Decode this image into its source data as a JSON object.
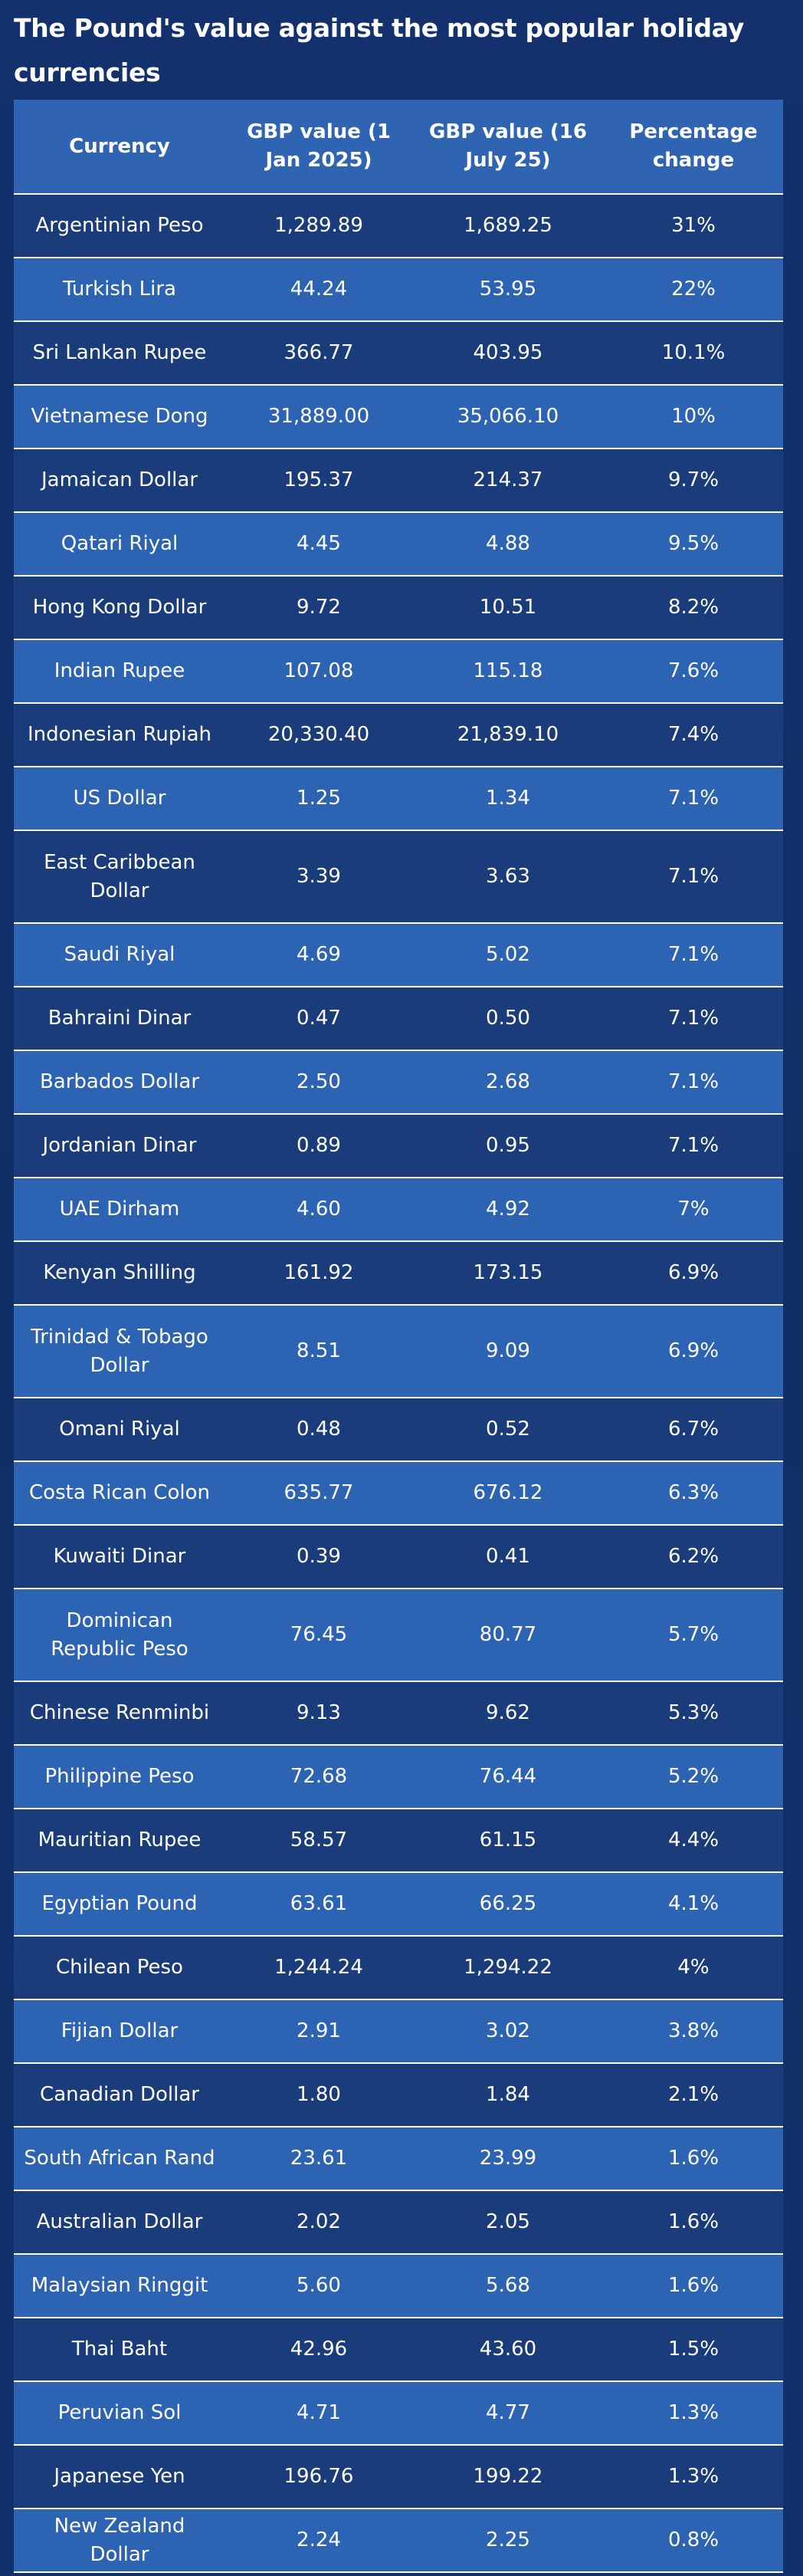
{
  "title": "The Pound's value against the most popular holiday currencies",
  "table": {
    "headers": [
      "Currency",
      "GBP value (1 Jan 2025)",
      "GBP value (16 July 25)",
      "Percentage change"
    ],
    "rows": [
      [
        "Argentinian Peso",
        "1,289.89",
        "1,689.25",
        "31%"
      ],
      [
        "Turkish Lira",
        "44.24",
        "53.95",
        "22%"
      ],
      [
        "Sri Lankan Rupee",
        "366.77",
        "403.95",
        "10.1%"
      ],
      [
        "Vietnamese Dong",
        "31,889.00",
        "35,066.10",
        "10%"
      ],
      [
        "Jamaican Dollar",
        "195.37",
        "214.37",
        "9.7%"
      ],
      [
        "Qatari Riyal",
        "4.45",
        "4.88",
        "9.5%"
      ],
      [
        "Hong Kong Dollar",
        "9.72",
        "10.51",
        "8.2%"
      ],
      [
        "Indian Rupee",
        "107.08",
        "115.18",
        "7.6%"
      ],
      [
        "Indonesian Rupiah",
        "20,330.40",
        "21,839.10",
        "7.4%"
      ],
      [
        "US Dollar",
        "1.25",
        "1.34",
        "7.1%"
      ],
      [
        "East Caribbean Dollar",
        "3.39",
        "3.63",
        "7.1%"
      ],
      [
        "Saudi Riyal",
        "4.69",
        "5.02",
        "7.1%"
      ],
      [
        "Bahraini Dinar",
        "0.47",
        "0.50",
        "7.1%"
      ],
      [
        "Barbados Dollar",
        "2.50",
        "2.68",
        "7.1%"
      ],
      [
        "Jordanian Dinar",
        "0.89",
        "0.95",
        "7.1%"
      ],
      [
        "UAE Dirham",
        "4.60",
        "4.92",
        "7%"
      ],
      [
        "Kenyan Shilling",
        "161.92",
        "173.15",
        "6.9%"
      ],
      [
        "Trinidad & Tobago Dollar",
        "8.51",
        "9.09",
        "6.9%"
      ],
      [
        "Omani Riyal",
        "0.48",
        "0.52",
        "6.7%"
      ],
      [
        "Costa Rican Colon",
        "635.77",
        "676.12",
        "6.3%"
      ],
      [
        "Kuwaiti Dinar",
        "0.39",
        "0.41",
        "6.2%"
      ],
      [
        "Dominican Republic Peso",
        "76.45",
        "80.77",
        "5.7%"
      ],
      [
        "Chinese Renminbi",
        "9.13",
        "9.62",
        "5.3%"
      ],
      [
        "Philippine Peso",
        "72.68",
        "76.44",
        "5.2%"
      ],
      [
        "Mauritian Rupee",
        "58.57",
        "61.15",
        "4.4%"
      ],
      [
        "Egyptian Pound",
        "63.61",
        "66.25",
        "4.1%"
      ],
      [
        "Chilean Peso",
        "1,244.24",
        "1,294.22",
        "4%"
      ],
      [
        "Fijian Dollar",
        "2.91",
        "3.02",
        "3.8%"
      ],
      [
        "Canadian Dollar",
        "1.80",
        "1.84",
        "2.1%"
      ],
      [
        "South African Rand",
        "23.61",
        "23.99",
        "1.6%"
      ],
      [
        "Australian Dollar",
        "2.02",
        "2.05",
        "1.6%"
      ],
      [
        "Malaysian Ringgit",
        "5.60",
        "5.68",
        "1.6%"
      ],
      [
        "Thai Baht",
        "42.96",
        "43.60",
        "1.5%"
      ],
      [
        "Peruvian Sol",
        "4.71",
        "4.77",
        "1.3%"
      ],
      [
        "Japanese Yen",
        "196.76",
        "199.22",
        "1.3%"
      ],
      [
        "New Zealand Dollar",
        "2.24",
        "2.25",
        "0.8%"
      ]
    ]
  },
  "colors": {
    "background": "#13306a",
    "header_row": "#2e64b2",
    "row_dark": "#1a3c7a",
    "row_light": "#2c63b2",
    "row_divider": "#ffffff",
    "text": "#ffffff"
  }
}
